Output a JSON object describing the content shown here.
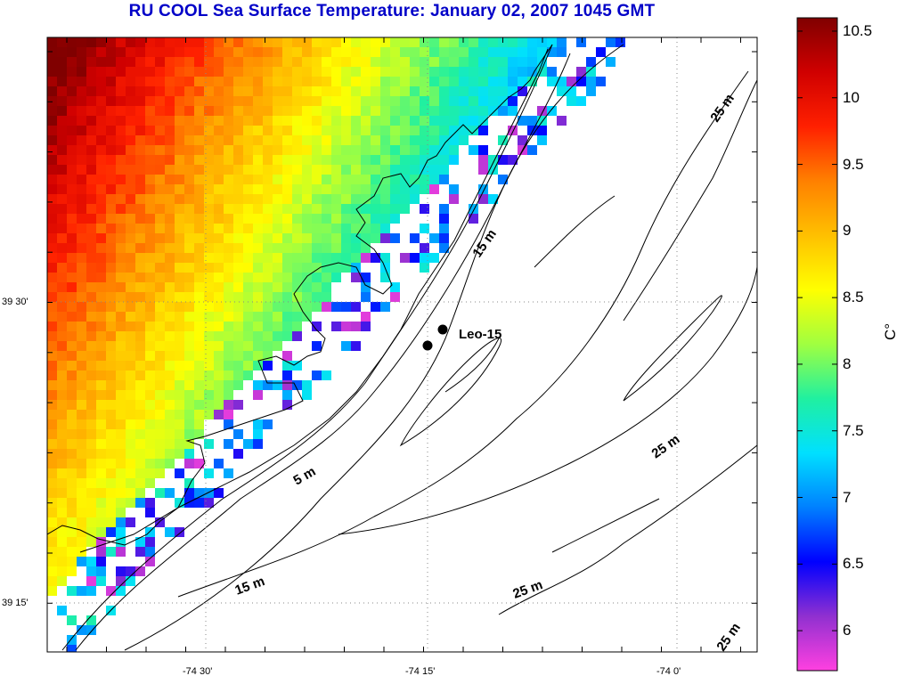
{
  "title": "RU COOL  Sea Surface Temperature:  January 02, 2007 1045 GMT",
  "map": {
    "lon_ticks": [
      "-74 30'",
      "-74 15'",
      "-74 0'"
    ],
    "lat_ticks": [
      "39 30'",
      "39 15'"
    ],
    "station": {
      "name": "Leo-15"
    },
    "isobath_labels": [
      "25 m",
      "15 m",
      "5 m",
      "25 m",
      "15 m",
      "25 m",
      "25 m"
    ]
  },
  "colorbar": {
    "unit": "C°",
    "min": 5.7,
    "max": 10.6,
    "ticks": [
      {
        "value": 10.5,
        "label": "10.5"
      },
      {
        "value": 10,
        "label": "10"
      },
      {
        "value": 9.5,
        "label": "9.5"
      },
      {
        "value": 9,
        "label": "9"
      },
      {
        "value": 8.5,
        "label": "8.5"
      },
      {
        "value": 8,
        "label": "8"
      },
      {
        "value": 7.5,
        "label": "7.5"
      },
      {
        "value": 7,
        "label": "7"
      },
      {
        "value": 6.5,
        "label": "6.5"
      },
      {
        "value": 6,
        "label": "6"
      }
    ],
    "stops": [
      "#ff40e0",
      "#9030d0",
      "#0000ff",
      "#0080ff",
      "#00e0ff",
      "#20f0a0",
      "#a0ff40",
      "#ffff00",
      "#ffc000",
      "#ff8000",
      "#ff2000",
      "#d00000",
      "#800000"
    ]
  }
}
